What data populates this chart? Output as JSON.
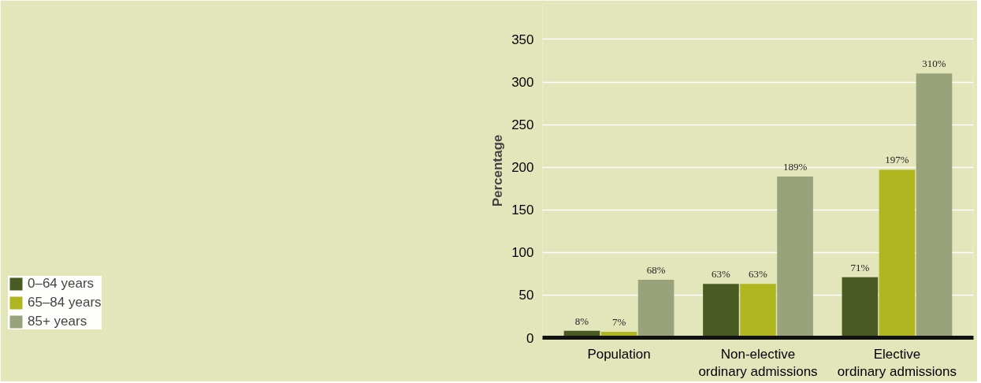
{
  "chart_data": {
    "type": "bar",
    "ylabel": "Percentage",
    "categories": [
      "Population",
      "Non-elective\nordinary admissions",
      "Elective\nordinary admissions"
    ],
    "series": [
      {
        "name": "0–64 years",
        "color": "#4a5a23",
        "values": [
          8,
          63,
          71
        ],
        "value_labels": [
          "8%",
          "63%",
          "71%"
        ]
      },
      {
        "name": "65–84 years",
        "color": "#afb61f",
        "values": [
          7,
          63,
          197
        ],
        "value_labels": [
          "7%",
          "63%",
          "197%"
        ]
      },
      {
        "name": "85+ years",
        "color": "#99a37b",
        "values": [
          68,
          189,
          310
        ],
        "value_labels": [
          "68%",
          "189%",
          "310%"
        ]
      }
    ],
    "ylim": [
      0,
      392
    ],
    "yticks": [
      0,
      50,
      100,
      150,
      200,
      250,
      300,
      350
    ],
    "grid": "y",
    "legend": "bottom left"
  }
}
